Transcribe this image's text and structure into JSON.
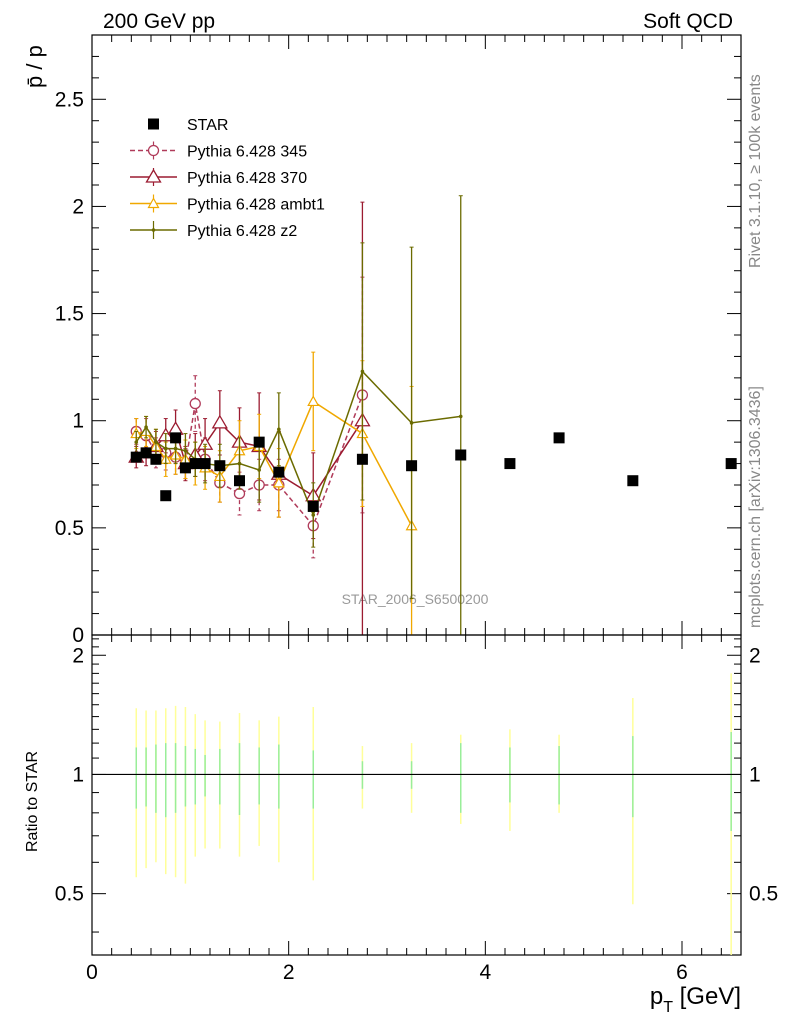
{
  "header": {
    "left": "200 GeV pp",
    "right": "Soft QCD",
    "side_rivet": "Rivet 3.1.10, ≥ 100k events",
    "side_mcplots": "mcplots.cern.ch [arXiv:1306.3436]"
  },
  "colors": {
    "star": "#000000",
    "p345": "#b03b5a",
    "p370": "#9b1b30",
    "ambt1": "#f0a800",
    "z2": "#6b6b00",
    "band_yellow": "#ffff99",
    "band_green": "#99ee99"
  },
  "chart_data": [
    {
      "type": "scatter",
      "title": "",
      "watermark": "STAR_2006_S6500200",
      "ylabel": "p̄ / p",
      "xlabel": "p_T [GeV]",
      "xlim": [
        0,
        6.6
      ],
      "ylim": [
        0,
        2.8
      ],
      "y_ticks": [
        "0",
        "0.5",
        "1",
        "1.5",
        "2",
        "2.5"
      ],
      "legend_position": "top-left",
      "series": [
        {
          "name": "STAR",
          "style": "square",
          "x": [
            0.45,
            0.55,
            0.65,
            0.75,
            0.85,
            0.95,
            1.05,
            1.15,
            1.3,
            1.5,
            1.7,
            1.9,
            2.25,
            2.75,
            3.25,
            3.75,
            4.25,
            4.75,
            5.5,
            6.5
          ],
          "y": [
            0.83,
            0.85,
            0.82,
            0.65,
            0.92,
            0.78,
            0.8,
            0.8,
            0.79,
            0.72,
            0.9,
            0.76,
            0.6,
            0.82,
            0.79,
            0.84,
            0.8,
            0.92,
            0.72,
            0.8
          ]
        },
        {
          "name": "Pythia 6.428 345",
          "style": "circle-dashed",
          "x": [
            0.45,
            0.55,
            0.65,
            0.75,
            0.85,
            0.95,
            1.05,
            1.15,
            1.3,
            1.5,
            1.7,
            1.9,
            2.25,
            2.75
          ],
          "y": [
            0.95,
            0.93,
            0.85,
            0.85,
            0.83,
            0.8,
            1.08,
            0.82,
            0.71,
            0.66,
            0.7,
            0.7,
            0.51,
            1.12
          ],
          "err": [
            0.06,
            0.08,
            0.07,
            0.08,
            0.08,
            0.07,
            0.13,
            0.1,
            0.09,
            0.1,
            0.12,
            0.12,
            0.15,
            0.55
          ]
        },
        {
          "name": "Pythia 6.428 370",
          "style": "triangle-open",
          "x": [
            0.45,
            0.55,
            0.65,
            0.75,
            0.85,
            0.95,
            1.05,
            1.15,
            1.3,
            1.5,
            1.7,
            1.9,
            2.25,
            2.75
          ],
          "y": [
            0.83,
            0.85,
            0.88,
            0.93,
            0.96,
            0.8,
            0.84,
            0.89,
            0.99,
            0.9,
            0.88,
            0.75,
            0.65,
            1.0
          ],
          "err": [
            0.05,
            0.06,
            0.07,
            0.08,
            0.09,
            0.08,
            0.1,
            0.12,
            0.15,
            0.16,
            0.25,
            0.2,
            0.2,
            1.02
          ]
        },
        {
          "name": "Pythia 6.428 ambt1",
          "style": "triangle-small",
          "x": [
            0.45,
            0.55,
            0.65,
            0.75,
            0.85,
            0.95,
            1.05,
            1.15,
            1.3,
            1.5,
            1.7,
            1.9,
            2.25,
            2.75,
            3.25
          ],
          "y": [
            0.94,
            0.95,
            0.88,
            0.82,
            0.84,
            0.82,
            0.8,
            0.78,
            0.74,
            0.86,
            0.88,
            0.71,
            1.09,
            0.94,
            0.51
          ],
          "err": [
            0.07,
            0.07,
            0.08,
            0.08,
            0.09,
            0.09,
            0.1,
            0.1,
            0.12,
            0.14,
            0.15,
            0.16,
            0.23,
            0.34,
            0.65
          ]
        },
        {
          "name": "Pythia 6.428 z2",
          "style": "dot",
          "x": [
            0.45,
            0.55,
            0.65,
            0.75,
            0.85,
            0.95,
            1.05,
            1.15,
            1.3,
            1.5,
            1.7,
            1.9,
            2.25,
            2.75,
            3.25,
            3.75
          ],
          "y": [
            0.9,
            0.97,
            0.9,
            0.87,
            0.87,
            0.86,
            0.82,
            0.8,
            0.79,
            0.8,
            0.77,
            0.96,
            0.56,
            1.23,
            0.99,
            1.02
          ],
          "err": [
            0.05,
            0.05,
            0.06,
            0.07,
            0.07,
            0.08,
            0.08,
            0.09,
            0.1,
            0.12,
            0.15,
            0.17,
            0.15,
            0.6,
            0.82,
            1.03
          ]
        }
      ]
    },
    {
      "type": "scatter",
      "title": "",
      "ylabel": "Ratio to STAR",
      "xlabel": "p_T [GeV]",
      "xlim": [
        0,
        6.6
      ],
      "ylim": [
        0.35,
        2.25
      ],
      "y_ticks": [
        "0.5",
        "1",
        "2"
      ],
      "x_ticks": [
        "0",
        "2",
        "4",
        "6"
      ],
      "reference_line": 1,
      "bands": {
        "x": [
          0.45,
          0.55,
          0.65,
          0.75,
          0.85,
          0.95,
          1.05,
          1.15,
          1.3,
          1.5,
          1.7,
          1.9,
          2.25,
          2.75,
          3.25,
          3.75,
          4.25,
          4.75,
          5.5,
          6.5
        ],
        "outer_lo": [
          0.55,
          0.58,
          0.6,
          0.56,
          0.55,
          0.53,
          0.62,
          0.65,
          0.65,
          0.62,
          0.66,
          0.6,
          0.54,
          0.82,
          0.8,
          0.75,
          0.72,
          0.8,
          0.47,
          0.35
        ],
        "outer_hi": [
          1.47,
          1.45,
          1.45,
          1.47,
          1.49,
          1.48,
          1.42,
          1.37,
          1.36,
          1.43,
          1.37,
          1.4,
          1.48,
          1.18,
          1.2,
          1.26,
          1.3,
          1.26,
          1.56,
          1.8
        ],
        "inner_lo": [
          0.82,
          0.83,
          0.8,
          0.78,
          0.8,
          0.83,
          0.84,
          0.88,
          0.84,
          0.79,
          0.84,
          0.82,
          0.82,
          0.92,
          0.92,
          0.8,
          0.85,
          0.84,
          0.78,
          0.72
        ],
        "inner_hi": [
          1.17,
          1.17,
          1.19,
          1.2,
          1.2,
          1.18,
          1.16,
          1.12,
          1.16,
          1.2,
          1.17,
          1.19,
          1.15,
          1.08,
          1.08,
          1.2,
          1.17,
          1.18,
          1.25,
          1.28
        ]
      }
    }
  ]
}
